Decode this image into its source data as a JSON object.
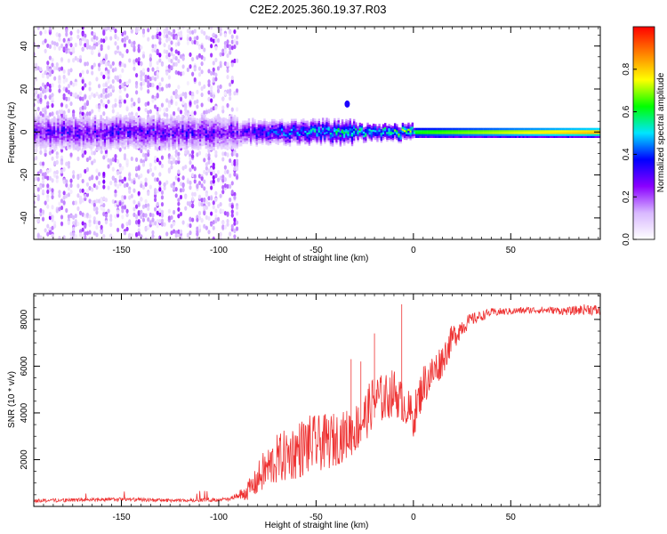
{
  "title": "C2E2.2025.360.19.37.R03",
  "chart_data": [
    {
      "type": "heatmap",
      "name": "spectrogram",
      "xlabel": "Height of straight line (km)",
      "ylabel": "Frequency (Hz)",
      "xlim": [
        -195,
        96
      ],
      "ylim": [
        -50,
        49
      ],
      "x_ticks": [
        -150,
        -100,
        -50,
        0,
        50
      ],
      "y_ticks": [
        -40,
        -20,
        0,
        20,
        40
      ],
      "colorbar": {
        "label": "Normalized spectral amplitude",
        "range": [
          0.0,
          1.0
        ],
        "ticks": [
          0.0,
          0.2,
          0.4,
          0.6,
          0.8
        ],
        "tick_labels": [
          "0.0",
          "0.2",
          "0.4",
          "0.6",
          "0.8"
        ],
        "colors": [
          "#ffffff",
          "#d8b8ff",
          "#8a00ff",
          "#0000ff",
          "#00e5ff",
          "#00ff00",
          "#ffff00",
          "#ff8000",
          "#ff0000"
        ]
      },
      "features": [
        {
          "description_key": "noisy_broadband",
          "x_range": [
            -195,
            -90
          ],
          "freq_range": [
            -50,
            49
          ],
          "amplitude": 0.15
        },
        {
          "description_key": "carrier_band",
          "x_range": [
            -195,
            96
          ],
          "freq_center": 0,
          "amplitude_start": 0.3,
          "amplitude_end": 0.95
        },
        {
          "description_key": "spur",
          "x": -34,
          "freq": 13,
          "amplitude": 0.35
        }
      ]
    },
    {
      "type": "line",
      "name": "snr",
      "xlabel": "Height of straight line (km)",
      "ylabel": "SNR (10 * v/v)",
      "xlim": [
        -195,
        96
      ],
      "ylim": [
        0,
        9100
      ],
      "x_ticks": [
        -150,
        -100,
        -50,
        0,
        50
      ],
      "y_ticks": [
        2000,
        4000,
        6000,
        8000
      ],
      "series": [
        {
          "name": "SNR",
          "color": "#ee3333",
          "x": [
            -195,
            -150,
            -120,
            -95,
            -88,
            -82,
            -78,
            -70,
            -62,
            -55,
            -48,
            -42,
            -36,
            -30,
            -25,
            -20,
            -15,
            -10,
            -5,
            0,
            5,
            10,
            15,
            20,
            25,
            30,
            40,
            50,
            60,
            70,
            80,
            90,
            96
          ],
          "mean": [
            250,
            300,
            250,
            300,
            500,
            900,
            1400,
            2000,
            2300,
            2600,
            2700,
            2800,
            3000,
            3300,
            3800,
            4600,
            4600,
            4900,
            4400,
            3800,
            5200,
            5700,
            6300,
            7200,
            7700,
            8000,
            8300,
            8350,
            8400,
            8400,
            8350,
            8450,
            8350
          ],
          "noise": [
            200,
            200,
            180,
            200,
            500,
            900,
            1400,
            1800,
            2000,
            2200,
            2000,
            2000,
            1800,
            1800,
            1800,
            1900,
            1700,
            1700,
            1400,
            1500,
            1500,
            1400,
            1200,
            1000,
            700,
            450,
            300,
            250,
            250,
            250,
            300,
            400,
            400
          ],
          "peaks": [
            [
              -20,
              7400
            ],
            [
              -6,
              8650
            ],
            [
              -32,
              6300
            ],
            [
              -27,
              6200
            ]
          ]
        }
      ]
    }
  ]
}
